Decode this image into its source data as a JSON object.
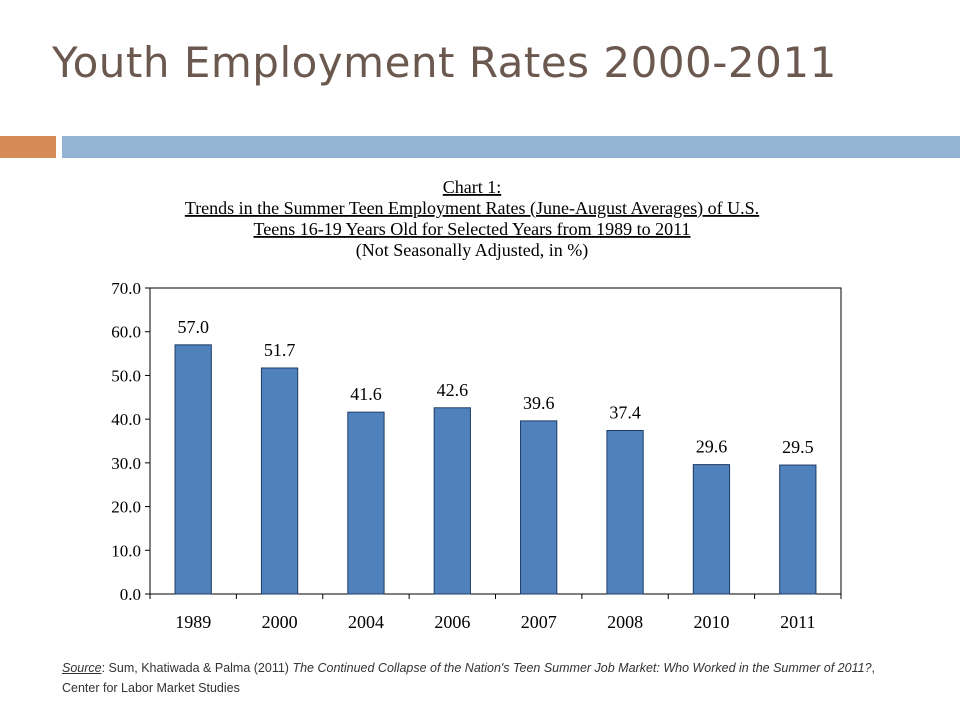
{
  "slide": {
    "title": "Youth Employment Rates 2000-2011",
    "accent_colors": {
      "orange": "#d68a55",
      "blue": "#93b4d3"
    }
  },
  "chart_data": {
    "type": "bar",
    "title_lines": [
      "Chart 1:",
      "Trends in the Summer Teen Employment Rates (June-August Averages) of U.S.",
      "Teens 16-19 Years Old for Selected Years from 1989 to 2011",
      "(Not Seasonally Adjusted, in %)"
    ],
    "categories": [
      "1989",
      "2000",
      "2004",
      "2006",
      "2007",
      "2008",
      "2010",
      "2011"
    ],
    "values": [
      57.0,
      51.7,
      41.6,
      42.6,
      39.6,
      37.4,
      29.6,
      29.5
    ],
    "value_labels": [
      "57.0",
      "51.7",
      "41.6",
      "42.6",
      "39.6",
      "37.4",
      "29.6",
      "29.5"
    ],
    "y_ticks": [
      "0.0",
      "10.0",
      "20.0",
      "30.0",
      "40.0",
      "50.0",
      "60.0",
      "70.0"
    ],
    "ylim": [
      0,
      70
    ],
    "grid": false,
    "legend": "none",
    "bar_color": "#4f81bd"
  },
  "source": {
    "label": "Source",
    "authors": ": Sum, Khatiwada & Palma (2011) ",
    "work_title": "The Continued Collapse of the Nation's Teen Summer Job Market: Who Worked in the Summer of 2011?",
    "publisher": ", Center for Labor Market Studies"
  }
}
